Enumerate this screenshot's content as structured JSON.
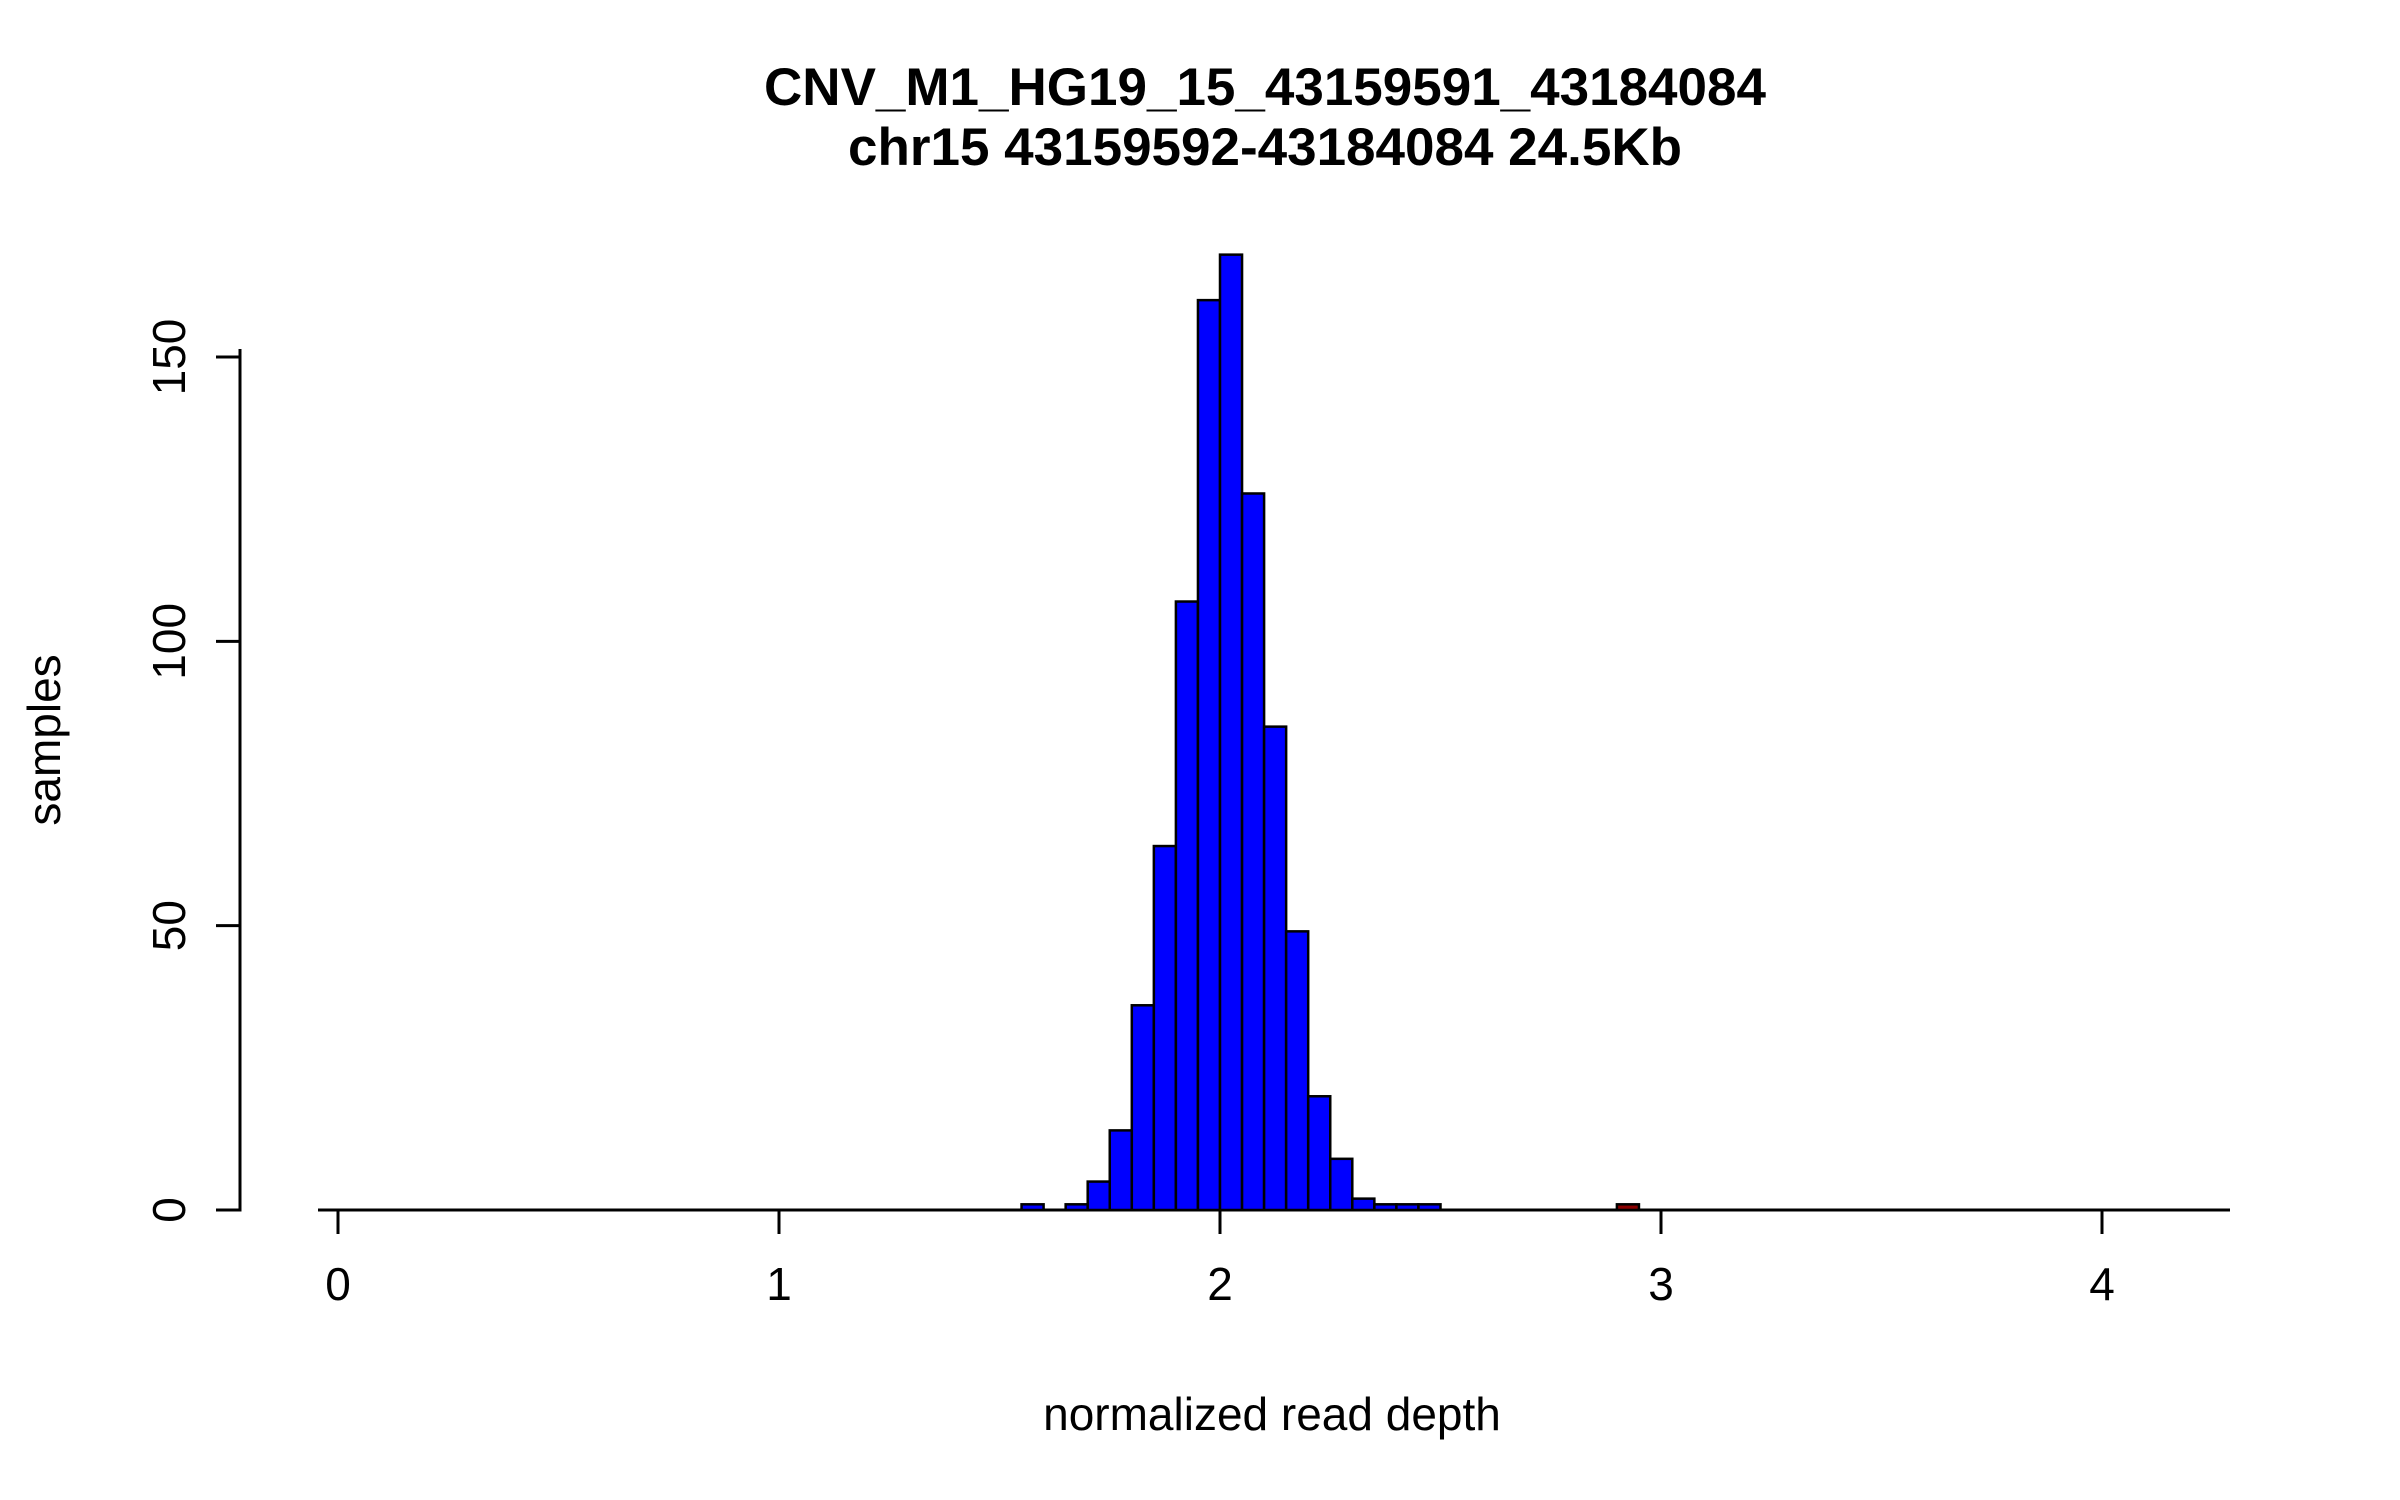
{
  "page": {
    "background": "#ffffff"
  },
  "chart_data": {
    "type": "bar",
    "subtype": "histogram",
    "title": "CNV_M1_HG19_15_43159591_43184084",
    "subtitle": "chr15 43159592-43184084 24.5Kb",
    "xlabel": "normalized read depth",
    "ylabel": "samples",
    "xlim": [
      -0.05,
      4.3
    ],
    "ylim": [
      0,
      170
    ],
    "x_ticks": [
      0,
      1,
      2,
      3,
      4
    ],
    "y_ticks": [
      0,
      50,
      100,
      150
    ],
    "bin_width": 0.05,
    "grid": false,
    "legend": "none",
    "colors": {
      "blue": "#0000FF",
      "red": "#8B0000",
      "bar_border": "#000000",
      "axis": "#000000"
    },
    "bars": [
      {
        "x": 1.55,
        "count": 1,
        "color": "blue"
      },
      {
        "x": 1.65,
        "count": 1,
        "color": "blue"
      },
      {
        "x": 1.7,
        "count": 5,
        "color": "blue"
      },
      {
        "x": 1.75,
        "count": 14,
        "color": "blue"
      },
      {
        "x": 1.8,
        "count": 36,
        "color": "blue"
      },
      {
        "x": 1.85,
        "count": 64,
        "color": "blue"
      },
      {
        "x": 1.9,
        "count": 107,
        "color": "blue"
      },
      {
        "x": 1.95,
        "count": 160,
        "color": "blue"
      },
      {
        "x": 2.0,
        "count": 168,
        "color": "blue"
      },
      {
        "x": 2.05,
        "count": 126,
        "color": "blue"
      },
      {
        "x": 2.1,
        "count": 85,
        "color": "blue"
      },
      {
        "x": 2.15,
        "count": 49,
        "color": "blue"
      },
      {
        "x": 2.2,
        "count": 20,
        "color": "blue"
      },
      {
        "x": 2.25,
        "count": 9,
        "color": "blue"
      },
      {
        "x": 2.3,
        "count": 2,
        "color": "blue"
      },
      {
        "x": 2.35,
        "count": 1,
        "color": "blue"
      },
      {
        "x": 2.4,
        "count": 1,
        "color": "blue"
      },
      {
        "x": 2.45,
        "count": 1,
        "color": "blue"
      },
      {
        "x": 2.9,
        "count": 1,
        "color": "red"
      }
    ]
  }
}
